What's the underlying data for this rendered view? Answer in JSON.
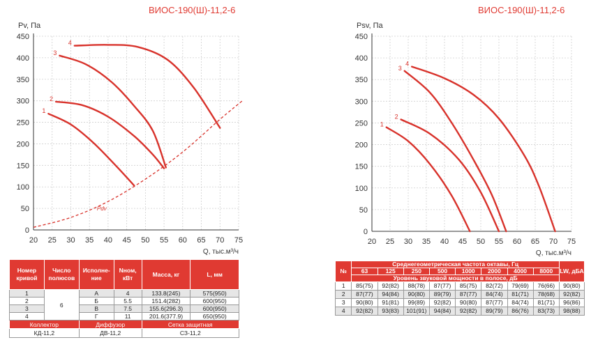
{
  "chart_data": [
    {
      "type": "line",
      "title": "ВИОС-190(Ш)-11,2-6",
      "ylabel": "Pv, Па",
      "xlabel": "Q, тыс.м³/ч",
      "xlim": [
        20,
        75
      ],
      "ylim": [
        0,
        450
      ],
      "xticks": [
        "20",
        "25",
        "30",
        "35",
        "40",
        "45",
        "50",
        "55",
        "60",
        "65",
        "70",
        "75"
      ],
      "yticks": [
        "0",
        "50",
        "100",
        "150",
        "200",
        "250",
        "300",
        "350",
        "400",
        "450"
      ],
      "grid": true,
      "series": [
        {
          "name": "1",
          "x": [
            24,
            30,
            36,
            42,
            47
          ],
          "y": [
            270,
            245,
            203,
            150,
            103
          ]
        },
        {
          "name": "2",
          "x": [
            26,
            33,
            40,
            47,
            52,
            55
          ],
          "y": [
            298,
            290,
            263,
            218,
            175,
            143
          ]
        },
        {
          "name": "3",
          "x": [
            27,
            34,
            41,
            47,
            52,
            55.5
          ],
          "y": [
            405,
            385,
            343,
            288,
            230,
            145
          ]
        },
        {
          "name": "4",
          "x": [
            31,
            40,
            48,
            56,
            63,
            70
          ],
          "y": [
            428,
            430,
            425,
            395,
            330,
            237
          ]
        },
        {
          "name": "Pdv",
          "x": [
            20,
            30,
            40,
            50,
            60,
            70,
            76
          ],
          "y": [
            6,
            29,
            66,
            118,
            181,
            257,
            300
          ],
          "dashed": true
        }
      ]
    },
    {
      "type": "line",
      "title": "ВИОС-190(Ш)-11,2-6",
      "ylabel": "Psv, Па",
      "xlabel": "Q, тыс.м³/ч",
      "xlim": [
        20,
        75
      ],
      "ylim": [
        0,
        450
      ],
      "xticks": [
        "20",
        "25",
        "30",
        "35",
        "40",
        "45",
        "50",
        "55",
        "60",
        "65",
        "70",
        "75"
      ],
      "yticks": [
        "0",
        "50",
        "100",
        "150",
        "200",
        "250",
        "300",
        "350",
        "400",
        "450"
      ],
      "grid": true,
      "series": [
        {
          "name": "1",
          "x": [
            24,
            30,
            36,
            42,
            47
          ],
          "y": [
            240,
            208,
            155,
            82,
            0
          ]
        },
        {
          "name": "2",
          "x": [
            28,
            36,
            44,
            50,
            55
          ],
          "y": [
            258,
            225,
            165,
            90,
            0
          ]
        },
        {
          "name": "3",
          "x": [
            29,
            36,
            42,
            48,
            53,
            57
          ],
          "y": [
            370,
            320,
            250,
            165,
            85,
            0
          ]
        },
        {
          "name": "4",
          "x": [
            31,
            40,
            48,
            55,
            62,
            66,
            70.5
          ],
          "y": [
            380,
            353,
            315,
            260,
            175,
            105,
            0
          ]
        }
      ]
    }
  ],
  "spec_table": {
    "headers": [
      "Номер кривой",
      "Число полюсов",
      "Исполне-ние",
      "Nном, кВт",
      "Масса, кг",
      "L, мм"
    ],
    "poles": "6",
    "rows": [
      {
        "curve": "1",
        "version": "А",
        "power": "4",
        "mass": "133.8(245)",
        "length": "575(950)"
      },
      {
        "curve": "2",
        "version": "Б",
        "power": "5.5",
        "mass": "151.4(282)",
        "length": "600(950)"
      },
      {
        "curve": "3",
        "version": "В",
        "power": "7.5",
        "mass": "155.6(296.3)",
        "length": "600(950)"
      },
      {
        "curve": "4",
        "version": "Г",
        "power": "11",
        "mass": "201.6(377.9)",
        "length": "650(950)"
      }
    ],
    "footer_labels": [
      "Коллектор",
      "Диффузор",
      "Сетка защитная"
    ],
    "footer_values": [
      "КД-11,2",
      "ДВ-11,2",
      "СЗ-11,2"
    ]
  },
  "noise_table": {
    "num_header": "№",
    "freq_header": "Среднегеометрическая частота октавы, Гц",
    "freqs": [
      "63",
      "125",
      "250",
      "500",
      "1000",
      "2000",
      "4000",
      "8000"
    ],
    "level_header": "Уровень звуковой мощности в полосе, дБ",
    "lw_header": "LW, дБА",
    "rows": [
      {
        "n": "1",
        "values": [
          "85(75)",
          "92(82)",
          "88(78)",
          "87(77)",
          "85(75)",
          "82(72)",
          "79(69)",
          "76(66)"
        ],
        "lw": "90(80)"
      },
      {
        "n": "2",
        "values": [
          "87(77)",
          "94(84)",
          "90(80)",
          "89(79)",
          "87(77)",
          "84(74)",
          "81(71)",
          "78(68)"
        ],
        "lw": "92(82)"
      },
      {
        "n": "3",
        "values": [
          "90(80)",
          "91(81)",
          "99(89)",
          "92(82)",
          "90(80)",
          "87(77)",
          "84(74)",
          "81(71)"
        ],
        "lw": "96(86)"
      },
      {
        "n": "4",
        "values": [
          "92(82)",
          "93(83)",
          "101(91)",
          "94(84)",
          "92(82)",
          "89(79)",
          "86(76)",
          "83(73)"
        ],
        "lw": "98(88)"
      }
    ]
  },
  "colors": {
    "accent": "#e03a32",
    "curve": "#d8322b",
    "row_alt": "#e6e6e6"
  }
}
